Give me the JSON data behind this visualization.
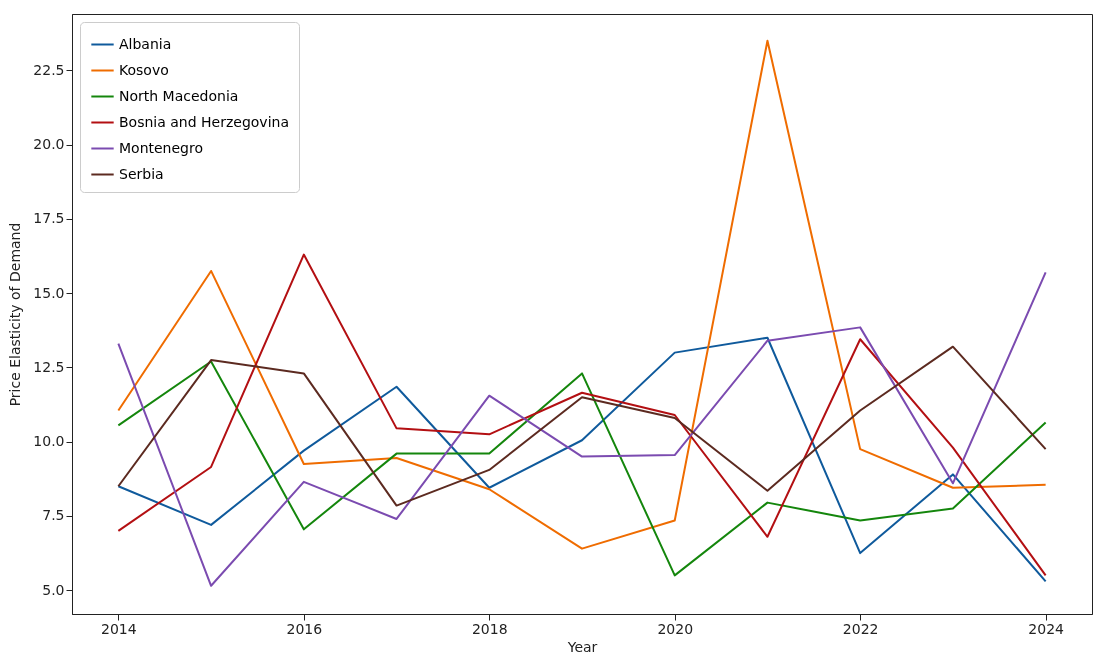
{
  "chart_data": {
    "type": "line",
    "xlabel": "Year",
    "ylabel": "Price Elasticity of Demand",
    "x": [
      2014,
      2015,
      2016,
      2017,
      2018,
      2019,
      2020,
      2021,
      2022,
      2023,
      2024
    ],
    "series": [
      {
        "name": "Albania",
        "color": "#0f5a9c",
        "values": [
          8.5,
          7.2,
          9.7,
          11.85,
          8.45,
          10.05,
          13.0,
          13.5,
          6.25,
          8.9,
          5.3
        ]
      },
      {
        "name": "Kosovo",
        "color": "#ef6c00",
        "values": [
          11.05,
          15.75,
          9.25,
          9.45,
          8.4,
          6.4,
          7.35,
          23.5,
          9.75,
          8.45,
          8.55
        ]
      },
      {
        "name": "North Macedonia",
        "color": "#14860c",
        "values": [
          10.55,
          12.7,
          7.05,
          9.6,
          9.6,
          12.3,
          5.5,
          7.95,
          7.35,
          7.75,
          10.65
        ]
      },
      {
        "name": "Bosnia and Herzegovina",
        "color": "#b30f12",
        "values": [
          7.0,
          9.15,
          16.3,
          10.45,
          10.25,
          11.65,
          10.9,
          6.8,
          13.45,
          9.8,
          5.5
        ]
      },
      {
        "name": "Montenegro",
        "color": "#7b4bb0",
        "values": [
          13.3,
          5.15,
          8.65,
          7.4,
          11.55,
          9.5,
          9.55,
          13.4,
          13.85,
          8.6,
          15.7
        ]
      },
      {
        "name": "Serbia",
        "color": "#5c2a20",
        "values": [
          8.5,
          12.75,
          12.3,
          7.85,
          9.05,
          11.5,
          10.8,
          8.35,
          11.05,
          13.2,
          9.75
        ]
      }
    ],
    "xlim": [
      2013.5,
      2024.5
    ],
    "ylim": [
      4.2,
      24.4
    ],
    "xticks": [
      2014,
      2016,
      2018,
      2020,
      2022,
      2024
    ],
    "yticks": [
      {
        "value": 5,
        "label": "5.0"
      },
      {
        "value": 7.5,
        "label": "7.5"
      },
      {
        "value": 10,
        "label": "10.0"
      },
      {
        "value": 12.5,
        "label": "12.5"
      },
      {
        "value": 15,
        "label": "15.0"
      },
      {
        "value": 17.5,
        "label": "17.5"
      },
      {
        "value": 20,
        "label": "20.0"
      },
      {
        "value": 22.5,
        "label": "22.5"
      }
    ],
    "legend": "top left",
    "grid": false
  }
}
